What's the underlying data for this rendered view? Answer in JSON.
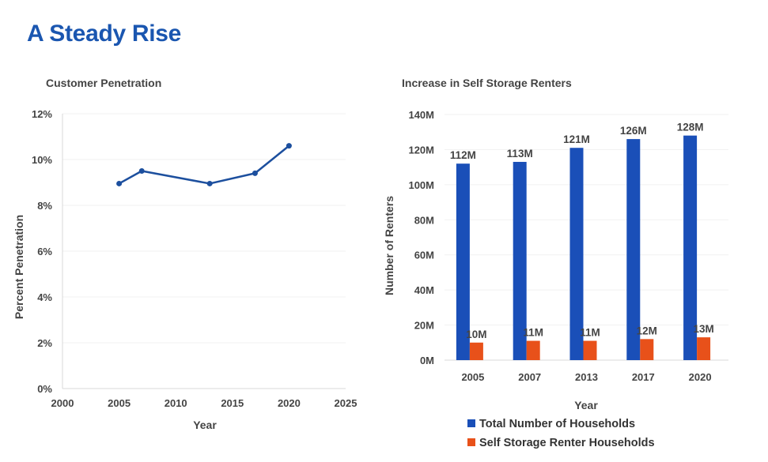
{
  "page": {
    "title": "A Steady Rise"
  },
  "colors": {
    "title": "#1a56b0",
    "line": "#1c4f9e",
    "bar_blue": "#1a4fb8",
    "bar_orange": "#e8511a",
    "grid": "#f1f1f1",
    "axis": "#d9d9d9",
    "text": "#444444"
  },
  "chart_data": [
    {
      "type": "line",
      "title": "Customer Penetration",
      "xlabel": "Year",
      "ylabel": "Percent Penetration",
      "xlim": [
        2000,
        2025
      ],
      "ylim": [
        0,
        12
      ],
      "x_ticks": [
        2000,
        2005,
        2010,
        2015,
        2020,
        2025
      ],
      "y_ticks": [
        0,
        2,
        4,
        6,
        8,
        10,
        12
      ],
      "y_tick_labels": [
        "0%",
        "2%",
        "4%",
        "6%",
        "8%",
        "10%",
        "12%"
      ],
      "grid": true,
      "series": [
        {
          "name": "Customer Penetration",
          "x": [
            2005,
            2007,
            2013,
            2017,
            2020
          ],
          "y": [
            8.95,
            9.5,
            8.95,
            9.4,
            10.6
          ]
        }
      ]
    },
    {
      "type": "bar",
      "title": "Increase in Self Storage Renters",
      "xlabel": "Year",
      "ylabel": "Number of Renters",
      "categories": [
        "2005",
        "2007",
        "2013",
        "2017",
        "2020"
      ],
      "ylim": [
        0,
        140
      ],
      "y_ticks": [
        0,
        20,
        40,
        60,
        80,
        100,
        120,
        140
      ],
      "y_tick_labels": [
        "0M",
        "20M",
        "40M",
        "60M",
        "80M",
        "100M",
        "120M",
        "140M"
      ],
      "grid": true,
      "legend": "bottom",
      "series": [
        {
          "name": "Total Number of Households",
          "values": [
            112,
            113,
            121,
            126,
            128
          ],
          "labels": [
            "112M",
            "113M",
            "121M",
            "126M",
            "128M"
          ]
        },
        {
          "name": "Self Storage Renter Households",
          "values": [
            10,
            11,
            11,
            12,
            13
          ],
          "labels": [
            "10M",
            "11M",
            "11M",
            "12M",
            "13M"
          ]
        }
      ]
    }
  ]
}
